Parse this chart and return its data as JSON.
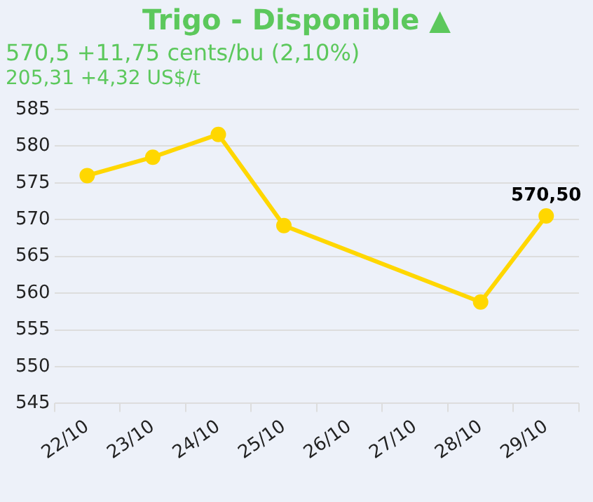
{
  "chart_data": {
    "type": "line",
    "title": "Trigo - Disponible ▲",
    "subtitle": "570,5 +11,75 cents/bu (2,10%)",
    "annotations": [
      "205,31 +4,32 US$/t"
    ],
    "categories": [
      "22/10",
      "23/10",
      "24/10",
      "25/10",
      "26/10",
      "27/10",
      "28/10",
      "29/10"
    ],
    "series": [
      {
        "color": "#ffd700",
        "values": [
          576,
          578.5,
          581.6,
          569.2,
          null,
          null,
          558.8,
          570.5
        ],
        "value_labels": [
          null,
          null,
          null,
          null,
          null,
          null,
          null,
          "570,50"
        ]
      }
    ],
    "ylim": [
      545,
      585
    ],
    "yticks": [
      545,
      550,
      555,
      560,
      565,
      570,
      575,
      580,
      585
    ],
    "grid": "y",
    "legend": false,
    "marker": "circle",
    "line_style": "solid"
  }
}
